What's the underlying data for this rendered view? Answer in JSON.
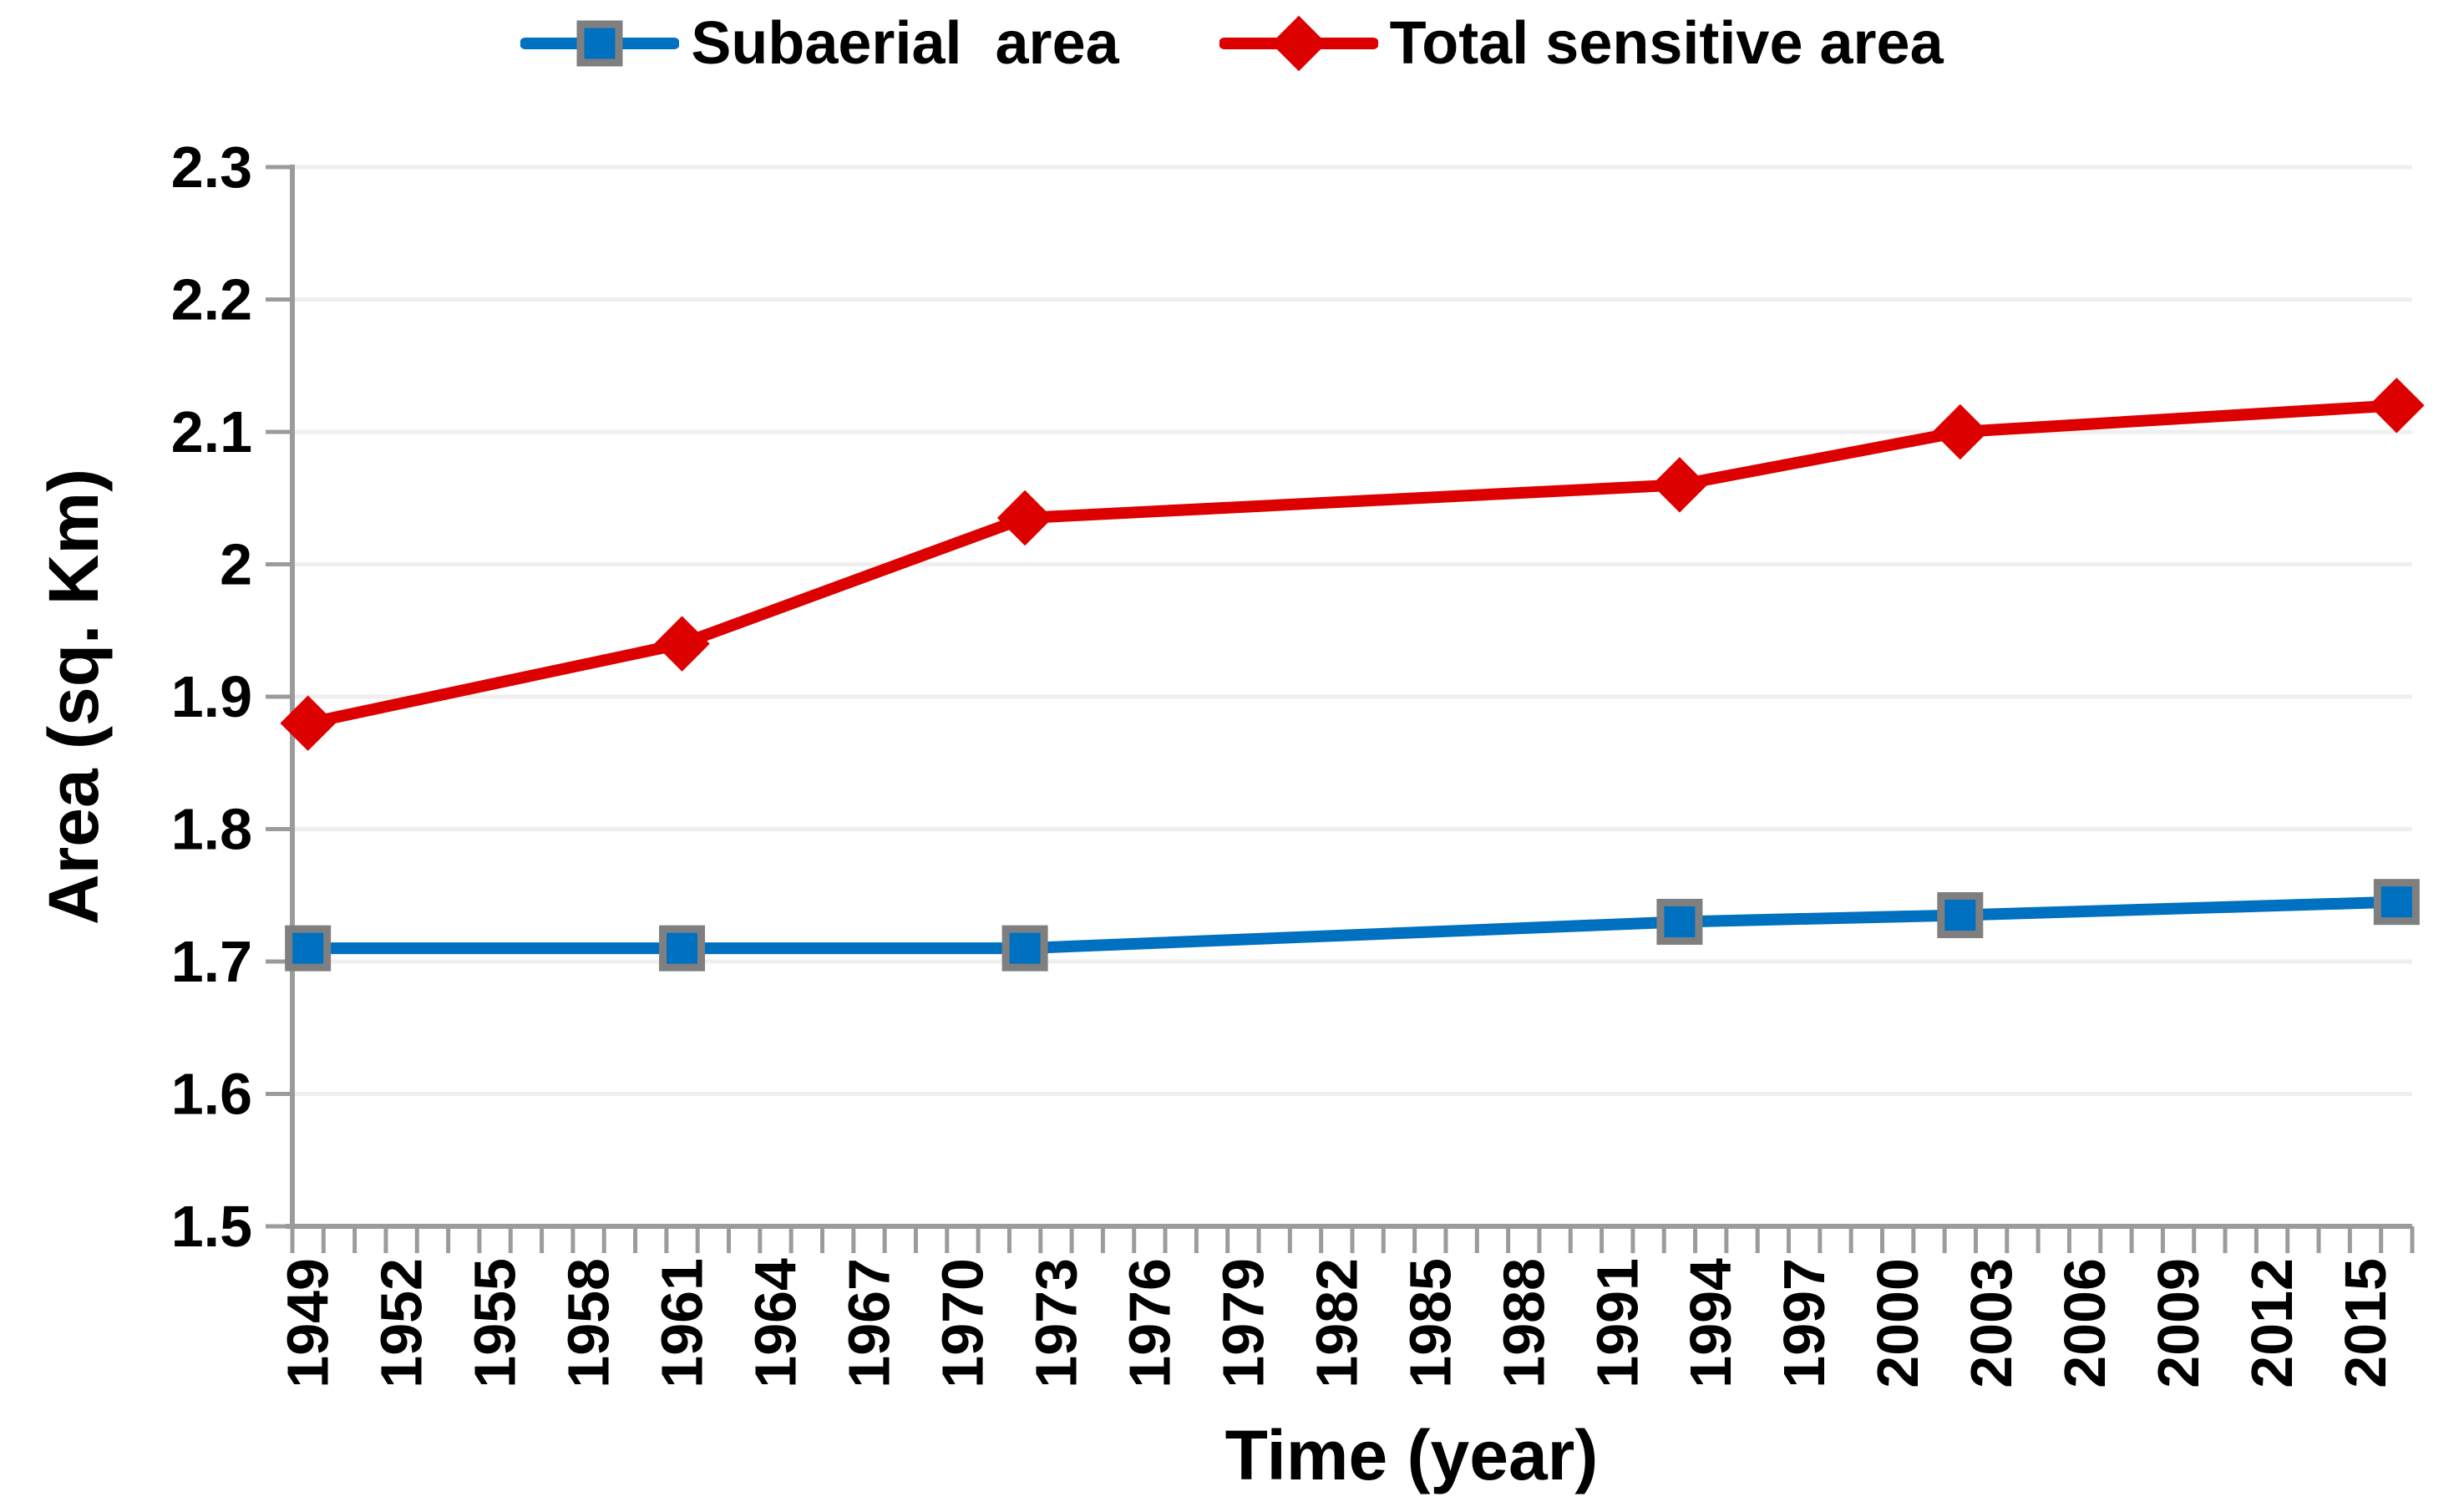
{
  "chart_data": {
    "type": "line",
    "title": "",
    "xlabel": "Time (year)",
    "ylabel": "Area (sq. Km)",
    "x": [
      1949,
      1961,
      1972,
      1993,
      2002,
      2016
    ],
    "series": [
      {
        "name": "Subaerial  area",
        "color": "#0070C0",
        "marker": "square",
        "marker_border": "#7F7F7F",
        "values": [
          1.71,
          1.71,
          1.71,
          1.73,
          1.735,
          1.745
        ]
      },
      {
        "name": "Total sensitive area",
        "color": "#DD0000",
        "marker": "diamond",
        "marker_border": "#DD0000",
        "values": [
          1.88,
          1.94,
          2.035,
          2.06,
          2.1,
          2.12
        ]
      }
    ],
    "ylim": [
      1.5,
      2.3
    ],
    "y_ticks": [
      1.5,
      1.6,
      1.7,
      1.8,
      1.9,
      2,
      2.1,
      2.2,
      2.3
    ],
    "y_tick_labels": [
      "1.5",
      "1.6",
      "1.7",
      "1.8",
      "1.9",
      "2",
      "2.1",
      "2.2",
      "2.3"
    ],
    "x_axis": {
      "first_year": 1949,
      "last_year": 2016,
      "minor_tick_every": 1,
      "label_every": 3
    },
    "x_tick_labels": [
      "1949",
      "1952",
      "1955",
      "1958",
      "1961",
      "1964",
      "1967",
      "1970",
      "1973",
      "1976",
      "1979",
      "1982",
      "1985",
      "1988",
      "1991",
      "1994",
      "1997",
      "2000",
      "2003",
      "2006",
      "2009",
      "2012",
      "2015"
    ],
    "grid": "horizontal",
    "legend_position": "top",
    "colors": {
      "axis": "#9B9B9B",
      "gridline": "#EFEFEF",
      "text": "#000000",
      "background": "#FFFFFF"
    }
  },
  "legend": {
    "items": [
      {
        "label": "Subaerial  area"
      },
      {
        "label": "Total sensitive area"
      }
    ]
  }
}
